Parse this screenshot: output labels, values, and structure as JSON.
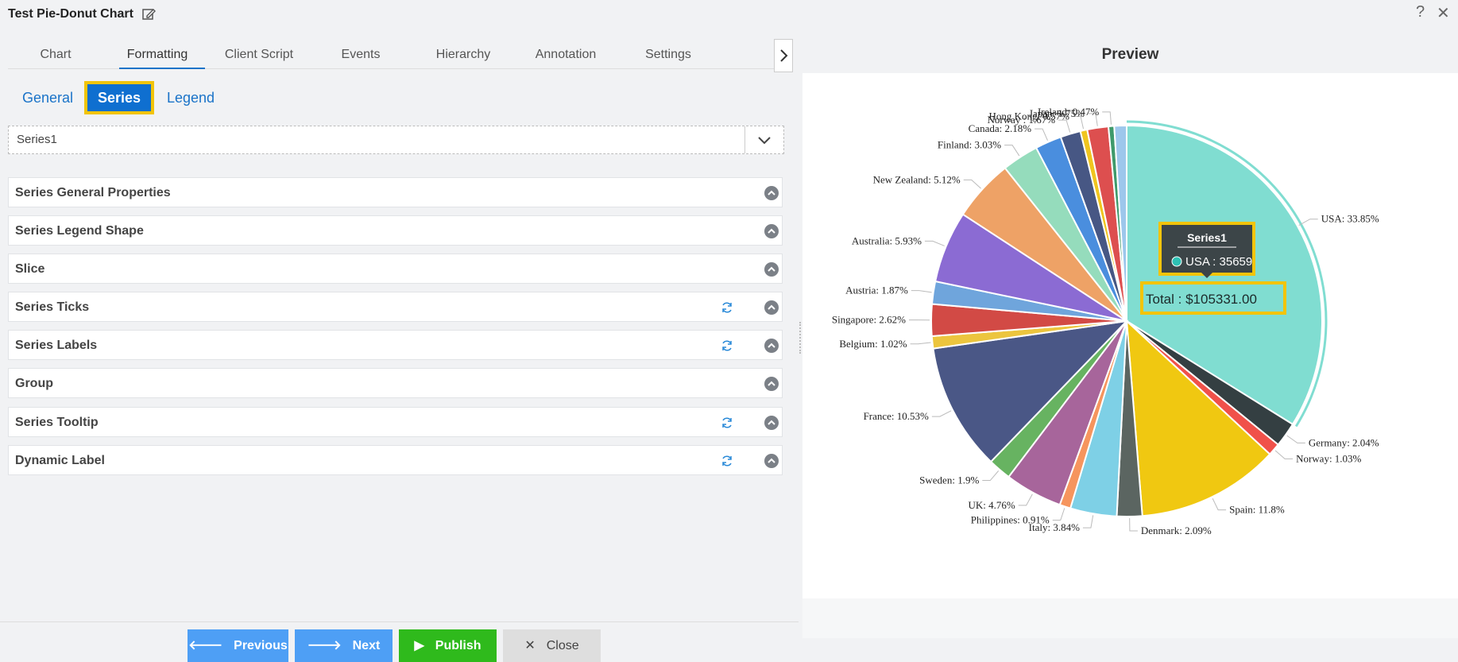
{
  "window": {
    "title": "Test Pie-Donut Chart",
    "help": "?",
    "close": "✕"
  },
  "tabs": [
    {
      "label": "Chart"
    },
    {
      "label": "Formatting"
    },
    {
      "label": "Client Script"
    },
    {
      "label": "Events"
    },
    {
      "label": "Hierarchy"
    },
    {
      "label": "Annotation"
    },
    {
      "label": "Settings"
    }
  ],
  "active_tab": "Formatting",
  "subtabs": [
    {
      "label": "General"
    },
    {
      "label": "Series"
    },
    {
      "label": "Legend"
    }
  ],
  "active_subtab": "Series",
  "series_select": {
    "value": "Series1"
  },
  "panels": [
    {
      "label": "Series General Properties",
      "refresh": false
    },
    {
      "label": "Series Legend Shape",
      "refresh": false
    },
    {
      "label": "Slice",
      "refresh": false
    },
    {
      "label": "Series Ticks",
      "refresh": true
    },
    {
      "label": "Series Labels",
      "refresh": true
    },
    {
      "label": "Group",
      "refresh": false
    },
    {
      "label": "Series Tooltip",
      "refresh": true
    },
    {
      "label": "Dynamic Label",
      "refresh": true
    }
  ],
  "buttons": {
    "previous": "Previous",
    "next": "Next",
    "publish": "Publish",
    "close": "Close",
    "colors": {
      "previous": "#4e9ff5",
      "next": "#4e9ff5",
      "publish": "#2fba1c",
      "close": "#dedede"
    }
  },
  "preview": {
    "title": "Preview",
    "tooltip": {
      "series": "Series1",
      "text": "USA : 35659"
    },
    "total": "Total : $105331.00"
  },
  "chart_data": {
    "type": "pie",
    "series_name": "Series1",
    "slices": [
      {
        "label": "USA",
        "display": "USA: 33.85%",
        "percent": 33.85,
        "color": "#80ddd1"
      },
      {
        "label": "Germany",
        "display": "Germany: 2.04%",
        "percent": 2.04,
        "color": "#343f42"
      },
      {
        "label": "Norway",
        "display": "Norway: 1.03%",
        "percent": 1.03,
        "color": "#f0514a"
      },
      {
        "label": "Spain",
        "display": "Spain: 11.8%",
        "percent": 11.8,
        "color": "#f0c811"
      },
      {
        "label": "Denmark",
        "display": "Denmark: 2.09%",
        "percent": 2.09,
        "color": "#5b6561"
      },
      {
        "label": "Italy",
        "display": "Italy: 3.84%",
        "percent": 3.84,
        "color": "#7ed0e6"
      },
      {
        "label": "Philippines",
        "display": "Philippines: 0.91%",
        "percent": 0.91,
        "color": "#f6955e"
      },
      {
        "label": "UK",
        "display": "UK: 4.76%",
        "percent": 4.76,
        "color": "#a7659b"
      },
      {
        "label": "Sweden",
        "display": "Sweden: 1.9%",
        "percent": 1.9,
        "color": "#67b361"
      },
      {
        "label": "France",
        "display": "France: 10.53%",
        "percent": 10.53,
        "color": "#4a5786"
      },
      {
        "label": "Belgium",
        "display": "Belgium: 1.02%",
        "percent": 1.02,
        "color": "#ecc53e"
      },
      {
        "label": "Singapore",
        "display": "Singapore: 2.62%",
        "percent": 2.62,
        "color": "#d24a45"
      },
      {
        "label": "Austria",
        "display": "Austria: 1.87%",
        "percent": 1.87,
        "color": "#6fa5dc"
      },
      {
        "label": "Australia",
        "display": "Australia: 5.93%",
        "percent": 5.93,
        "color": "#8b6bd3"
      },
      {
        "label": "New Zealand",
        "display": "New Zealand: 5.12%",
        "percent": 5.12,
        "color": "#eea266"
      },
      {
        "label": "Finland",
        "display": "Finland: 3.03%",
        "percent": 3.03,
        "color": "#95dcbc"
      },
      {
        "label": "Canada",
        "display": "Canada: 2.18%",
        "percent": 2.18,
        "color": "#4a8ede"
      },
      {
        "label": "Norway ",
        "display": "Norway : 1.67%",
        "percent": 1.67,
        "color": "#475784"
      },
      {
        "label": "Hong Kong",
        "display": "Hong Kong: 0.57%",
        "percent": 0.57,
        "color": "#f0c51f"
      },
      {
        "label": "Japan",
        "display": "Japan: 1.75%",
        "percent": 1.75,
        "color": "#dd4f4f"
      },
      {
        "label": "Ireland",
        "display": "Ireland: 0.47%",
        "percent": 0.47,
        "color": "#3f9a6b"
      },
      {
        "label": "",
        "display": "",
        "percent": 1.02,
        "color": "#9dc7ec"
      }
    ]
  }
}
